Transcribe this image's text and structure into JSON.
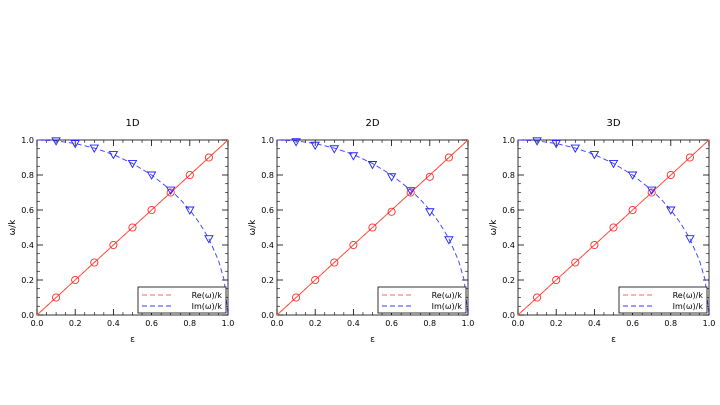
{
  "chart_data": [
    {
      "type": "line",
      "title": "1D",
      "xlabel": "ε",
      "ylabel": "ω/k",
      "xlim": [
        0.0,
        1.0
      ],
      "ylim": [
        0.0,
        1.0
      ],
      "xticks": [
        "0.0",
        "0.2",
        "0.4",
        "0.6",
        "0.8",
        "1.0"
      ],
      "yticks": [
        "0.0",
        "0.2",
        "0.4",
        "0.6",
        "0.8",
        "1.0"
      ],
      "grid": false,
      "legend_position": "bottom-right",
      "series": [
        {
          "name": "Re(ω)/k",
          "style": "dashed",
          "color": "#ff6a4d",
          "line_x": [
            0.0,
            1.0
          ],
          "line_y": [
            0.0,
            1.0
          ],
          "marker": "circle",
          "points_x": [
            0.1,
            0.2,
            0.3,
            0.4,
            0.5,
            0.6,
            0.7,
            0.8,
            0.9
          ],
          "points_y": [
            0.1,
            0.2,
            0.3,
            0.4,
            0.5,
            0.6,
            0.7,
            0.8,
            0.9
          ]
        },
        {
          "name": "Im(ω)/k",
          "style": "dashed",
          "color": "#3a3aff",
          "line_x": [
            0.0,
            0.1,
            0.2,
            0.3,
            0.4,
            0.5,
            0.6,
            0.7,
            0.75,
            0.8,
            0.85,
            0.9,
            0.95,
            0.98,
            1.0
          ],
          "line_y": [
            1.0,
            0.995,
            0.98,
            0.954,
            0.917,
            0.866,
            0.8,
            0.714,
            0.661,
            0.6,
            0.527,
            0.436,
            0.312,
            0.199,
            0.0
          ],
          "marker": "triangle-down",
          "points_x": [
            0.1,
            0.2,
            0.3,
            0.4,
            0.5,
            0.6,
            0.7,
            0.8,
            0.9
          ],
          "points_y": [
            0.995,
            0.98,
            0.954,
            0.917,
            0.866,
            0.8,
            0.714,
            0.6,
            0.436
          ]
        }
      ],
      "reference_line": {
        "color": "#ff2a2a",
        "x": [
          0.0,
          1.0
        ],
        "y": [
          0.0,
          1.0
        ]
      }
    },
    {
      "type": "line",
      "title": "2D",
      "xlabel": "ε",
      "ylabel": "ω/k",
      "xlim": [
        0.0,
        1.0
      ],
      "ylim": [
        0.0,
        1.0
      ],
      "xticks": [
        "0.0",
        "0.2",
        "0.4",
        "0.6",
        "0.8",
        "1.0"
      ],
      "yticks": [
        "0.0",
        "0.2",
        "0.4",
        "0.6",
        "0.8",
        "1.0"
      ],
      "grid": false,
      "legend_position": "bottom-right",
      "series": [
        {
          "name": "Re(ω)/k",
          "style": "dashed",
          "color": "#ff6a4d",
          "line_x": [
            0.0,
            1.0
          ],
          "line_y": [
            0.0,
            1.0
          ],
          "marker": "circle",
          "points_x": [
            0.1,
            0.2,
            0.3,
            0.4,
            0.5,
            0.6,
            0.7,
            0.8,
            0.9
          ],
          "points_y": [
            0.1,
            0.2,
            0.3,
            0.4,
            0.5,
            0.59,
            0.7,
            0.79,
            0.9
          ]
        },
        {
          "name": "Im(ω)/k",
          "style": "dashed",
          "color": "#3a3aff",
          "line_x": [
            0.0,
            0.1,
            0.2,
            0.3,
            0.4,
            0.5,
            0.6,
            0.7,
            0.75,
            0.8,
            0.85,
            0.9,
            0.95,
            0.98,
            1.0
          ],
          "line_y": [
            1.0,
            0.995,
            0.98,
            0.954,
            0.917,
            0.866,
            0.8,
            0.714,
            0.661,
            0.6,
            0.527,
            0.436,
            0.312,
            0.199,
            0.0
          ],
          "marker": "triangle-down",
          "points_x": [
            0.1,
            0.2,
            0.3,
            0.4,
            0.5,
            0.6,
            0.7,
            0.8,
            0.9
          ],
          "points_y": [
            0.99,
            0.97,
            0.95,
            0.91,
            0.86,
            0.79,
            0.71,
            0.59,
            0.43
          ]
        }
      ],
      "reference_line": {
        "color": "#ff2a2a",
        "x": [
          0.0,
          1.0
        ],
        "y": [
          0.0,
          1.0
        ]
      }
    },
    {
      "type": "line",
      "title": "3D",
      "xlabel": "ε",
      "ylabel": "ω/k",
      "xlim": [
        0.0,
        1.0
      ],
      "ylim": [
        0.0,
        1.0
      ],
      "xticks": [
        "0.0",
        "0.2",
        "0.4",
        "0.6",
        "0.8",
        "1.0"
      ],
      "yticks": [
        "0.0",
        "0.2",
        "0.4",
        "0.6",
        "0.8",
        "1.0"
      ],
      "grid": false,
      "legend_position": "bottom-right",
      "series": [
        {
          "name": "Re(ω)/k",
          "style": "dashed",
          "color": "#ff6a4d",
          "line_x": [
            0.0,
            1.0
          ],
          "line_y": [
            0.0,
            1.0
          ],
          "marker": "circle",
          "points_x": [
            0.1,
            0.2,
            0.3,
            0.4,
            0.5,
            0.6,
            0.7,
            0.8,
            0.9
          ],
          "points_y": [
            0.1,
            0.2,
            0.3,
            0.4,
            0.5,
            0.6,
            0.7,
            0.8,
            0.9
          ]
        },
        {
          "name": "Im(ω)/k",
          "style": "dashed",
          "color": "#3a3aff",
          "line_x": [
            0.0,
            0.1,
            0.2,
            0.3,
            0.4,
            0.5,
            0.6,
            0.7,
            0.75,
            0.8,
            0.85,
            0.9,
            0.95,
            0.98,
            1.0
          ],
          "line_y": [
            1.0,
            0.995,
            0.98,
            0.954,
            0.917,
            0.866,
            0.8,
            0.714,
            0.661,
            0.6,
            0.527,
            0.436,
            0.312,
            0.199,
            0.0
          ],
          "marker": "triangle-down",
          "points_x": [
            0.1,
            0.2,
            0.3,
            0.4,
            0.5,
            0.6,
            0.7,
            0.8,
            0.9
          ],
          "points_y": [
            0.995,
            0.98,
            0.954,
            0.917,
            0.866,
            0.8,
            0.714,
            0.6,
            0.436
          ]
        }
      ],
      "reference_line": {
        "color": "#ff2a2a",
        "x": [
          0.0,
          1.0
        ],
        "y": [
          0.0,
          1.0
        ]
      }
    }
  ]
}
